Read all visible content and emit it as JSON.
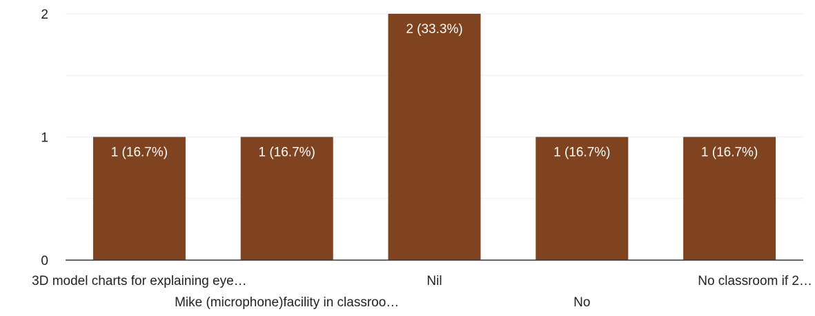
{
  "chart_data": {
    "type": "bar",
    "categories": [
      "3D model charts for explaining eye…",
      "Mike (microphone)facility in classroo…",
      "Nil",
      "No",
      "No classroom if 2…"
    ],
    "values": [
      1,
      1,
      2,
      1,
      1
    ],
    "data_labels": [
      "1 (16.7%)",
      "1 (16.7%)",
      "2 (33.3%)",
      "1 (16.7%)",
      "1 (16.7%)"
    ],
    "y_ticks": [
      "0",
      "1",
      "2"
    ],
    "ylim": [
      0,
      2
    ],
    "title": "",
    "xlabel": "",
    "ylabel": "",
    "grid": true,
    "legend": "none",
    "colors": {
      "bar": "#7f4320",
      "grid": "#eeeeee",
      "axis": "#333333",
      "text": "#222222",
      "data_label": "#ffffff"
    }
  }
}
